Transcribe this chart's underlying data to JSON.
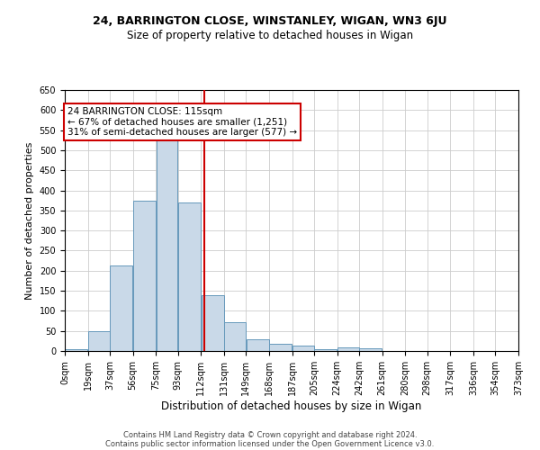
{
  "title1": "24, BARRINGTON CLOSE, WINSTANLEY, WIGAN, WN3 6JU",
  "title2": "Size of property relative to detached houses in Wigan",
  "xlabel": "Distribution of detached houses by size in Wigan",
  "ylabel": "Number of detached properties",
  "footnote1": "Contains HM Land Registry data © Crown copyright and database right 2024.",
  "footnote2": "Contains public sector information licensed under the Open Government Licence v3.0.",
  "annotation_line1": "24 BARRINGTON CLOSE: 115sqm",
  "annotation_line2": "← 67% of detached houses are smaller (1,251)",
  "annotation_line3": "31% of semi-detached houses are larger (577) →",
  "property_size": 115,
  "bin_edges": [
    0,
    19,
    37,
    56,
    75,
    93,
    112,
    131,
    149,
    168,
    187,
    205,
    224,
    242,
    261,
    280,
    298,
    317,
    336,
    354,
    373
  ],
  "bin_labels": [
    "0sqm",
    "19sqm",
    "37sqm",
    "56sqm",
    "75sqm",
    "93sqm",
    "112sqm",
    "131sqm",
    "149sqm",
    "168sqm",
    "187sqm",
    "205sqm",
    "224sqm",
    "242sqm",
    "261sqm",
    "280sqm",
    "298sqm",
    "317sqm",
    "336sqm",
    "354sqm",
    "373sqm"
  ],
  "counts": [
    5,
    50,
    212,
    375,
    545,
    370,
    138,
    72,
    30,
    18,
    14,
    5,
    8,
    7,
    0,
    0,
    0,
    0,
    0,
    0
  ],
  "bar_color": "#c9d9e8",
  "bar_edge_color": "#6699bb",
  "vline_color": "#cc0000",
  "vline_x": 115,
  "ylim": [
    0,
    650
  ],
  "yticks": [
    0,
    50,
    100,
    150,
    200,
    250,
    300,
    350,
    400,
    450,
    500,
    550,
    600,
    650
  ],
  "annotation_box_color": "#cc0000",
  "grid_color": "#cccccc",
  "bg_color": "#ffffff",
  "title1_fontsize": 9,
  "title2_fontsize": 8.5,
  "ylabel_fontsize": 8,
  "xlabel_fontsize": 8.5,
  "footnote_fontsize": 6,
  "annotation_fontsize": 7.5,
  "tick_fontsize": 7
}
